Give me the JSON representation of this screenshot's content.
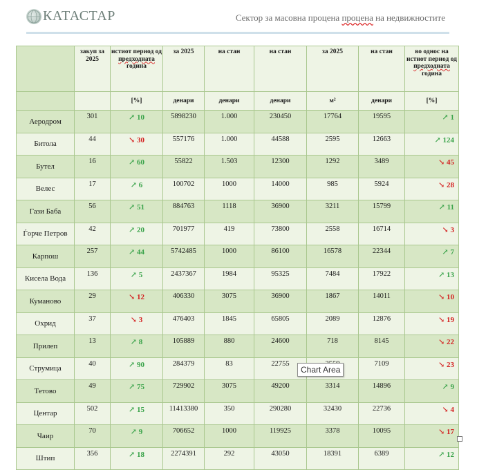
{
  "header": {
    "logo_text": "КАТАСТАР",
    "subtitle_pre": "Сектор за масовна процена ",
    "subtitle_wavy": "процена",
    "subtitle_post": " на недвижностите"
  },
  "table": {
    "columns": [
      {
        "header": "",
        "unit": ""
      },
      {
        "header": "закуп за 2025",
        "unit": ""
      },
      {
        "header_pre": "истиот период од ",
        "header_wavy": "предходната",
        "header_post": " година",
        "unit": "[%]"
      },
      {
        "header": "за 2025",
        "unit": "денари"
      },
      {
        "header": "на стан",
        "unit": "денари"
      },
      {
        "header": "на стан",
        "unit": "денари"
      },
      {
        "header": "за 2025",
        "unit": "м²"
      },
      {
        "header": "на стан",
        "unit": "денари"
      },
      {
        "header_pre": "во однос на истиот период од ",
        "header_wavy": "предходната",
        "header_post": " година",
        "unit": "[%]"
      }
    ],
    "rows": [
      {
        "name": "Аеродром",
        "c1": "301",
        "c2": "10",
        "c2dir": "up",
        "c3": "5898230",
        "c4": "1.000",
        "c5": "230450",
        "c6": "17764",
        "c7": "19595",
        "c8": "1",
        "c8dir": "up"
      },
      {
        "name": "Битола",
        "c1": "44",
        "c2": "30",
        "c2dir": "down",
        "c3": "557176",
        "c4": "1.000",
        "c5": "44588",
        "c6": "2595",
        "c7": "12663",
        "c8": "124",
        "c8dir": "up"
      },
      {
        "name": "Бутел",
        "c1": "16",
        "c2": "60",
        "c2dir": "up",
        "c3": "55822",
        "c4": "1.503",
        "c5": "12300",
        "c6": "1292",
        "c7": "3489",
        "c8": "45",
        "c8dir": "down"
      },
      {
        "name": "Велес",
        "c1": "17",
        "c2": "6",
        "c2dir": "up",
        "c3": "100702",
        "c4": "1000",
        "c5": "14000",
        "c6": "985",
        "c7": "5924",
        "c8": "28",
        "c8dir": "down"
      },
      {
        "name": "Гази Баба",
        "c1": "56",
        "c2": "51",
        "c2dir": "up",
        "c3": "884763",
        "c4": "1118",
        "c5": "36900",
        "c6": "3211",
        "c7": "15799",
        "c8": "11",
        "c8dir": "up"
      },
      {
        "name": "Ѓорче Петров",
        "c1": "42",
        "c2": "20",
        "c2dir": "up",
        "c3": "701977",
        "c4": "419",
        "c5": "73800",
        "c6": "2558",
        "c7": "16714",
        "c8": "3",
        "c8dir": "down"
      },
      {
        "name": "Карпош",
        "c1": "257",
        "c2": "44",
        "c2dir": "up",
        "c3": "5742485",
        "c4": "1000",
        "c5": "86100",
        "c6": "16578",
        "c7": "22344",
        "c8": "7",
        "c8dir": "up"
      },
      {
        "name": "Кисела Вода",
        "c1": "136",
        "c2": "5",
        "c2dir": "up",
        "c3": "2437367",
        "c4": "1984",
        "c5": "95325",
        "c6": "7484",
        "c7": "17922",
        "c8": "13",
        "c8dir": "up"
      },
      {
        "name": "Куманово",
        "c1": "29",
        "c2": "12",
        "c2dir": "down",
        "c3": "406330",
        "c4": "3075",
        "c5": "36900",
        "c6": "1867",
        "c7": "14011",
        "c8": "10",
        "c8dir": "down"
      },
      {
        "name": "Охрид",
        "c1": "37",
        "c2": "3",
        "c2dir": "down",
        "c3": "476403",
        "c4": "1845",
        "c5": "65805",
        "c6": "2089",
        "c7": "12876",
        "c8": "19",
        "c8dir": "down"
      },
      {
        "name": "Прилеп",
        "c1": "13",
        "c2": "8",
        "c2dir": "up",
        "c3": "105889",
        "c4": "880",
        "c5": "24600",
        "c6": "718",
        "c7": "8145",
        "c8": "22",
        "c8dir": "down"
      },
      {
        "name": "Струмица",
        "c1": "40",
        "c2": "90",
        "c2dir": "up",
        "c3": "284379",
        "c4": "83",
        "c5": "22755",
        "c6": "2559",
        "c7": "7109",
        "c8": "23",
        "c8dir": "down"
      },
      {
        "name": "Тетово",
        "c1": "49",
        "c2": "75",
        "c2dir": "up",
        "c3": "729902",
        "c4": "3075",
        "c5": "49200",
        "c6": "3314",
        "c7": "14896",
        "c8": "9",
        "c8dir": "up"
      },
      {
        "name": "Центар",
        "c1": "502",
        "c2": "15",
        "c2dir": "up",
        "c3": "11413380",
        "c4": "350",
        "c5": "290280",
        "c6": "32430",
        "c7": "22736",
        "c8": "4",
        "c8dir": "down"
      },
      {
        "name": "Чаир",
        "c1": "70",
        "c2": "9",
        "c2dir": "up",
        "c3": "706652",
        "c4": "1000",
        "c5": "119925",
        "c6": "3378",
        "c7": "10095",
        "c8": "17",
        "c8dir": "down"
      },
      {
        "name": "Штип",
        "c1": "356",
        "c2": "18",
        "c2dir": "up",
        "c3": "2274391",
        "c4": "292",
        "c5": "43050",
        "c6": "18391",
        "c7": "6389",
        "c8": "12",
        "c8dir": "up"
      }
    ]
  },
  "tooltip": {
    "text": "Chart Area"
  },
  "icons": {
    "up": "↗",
    "down": "↘"
  }
}
